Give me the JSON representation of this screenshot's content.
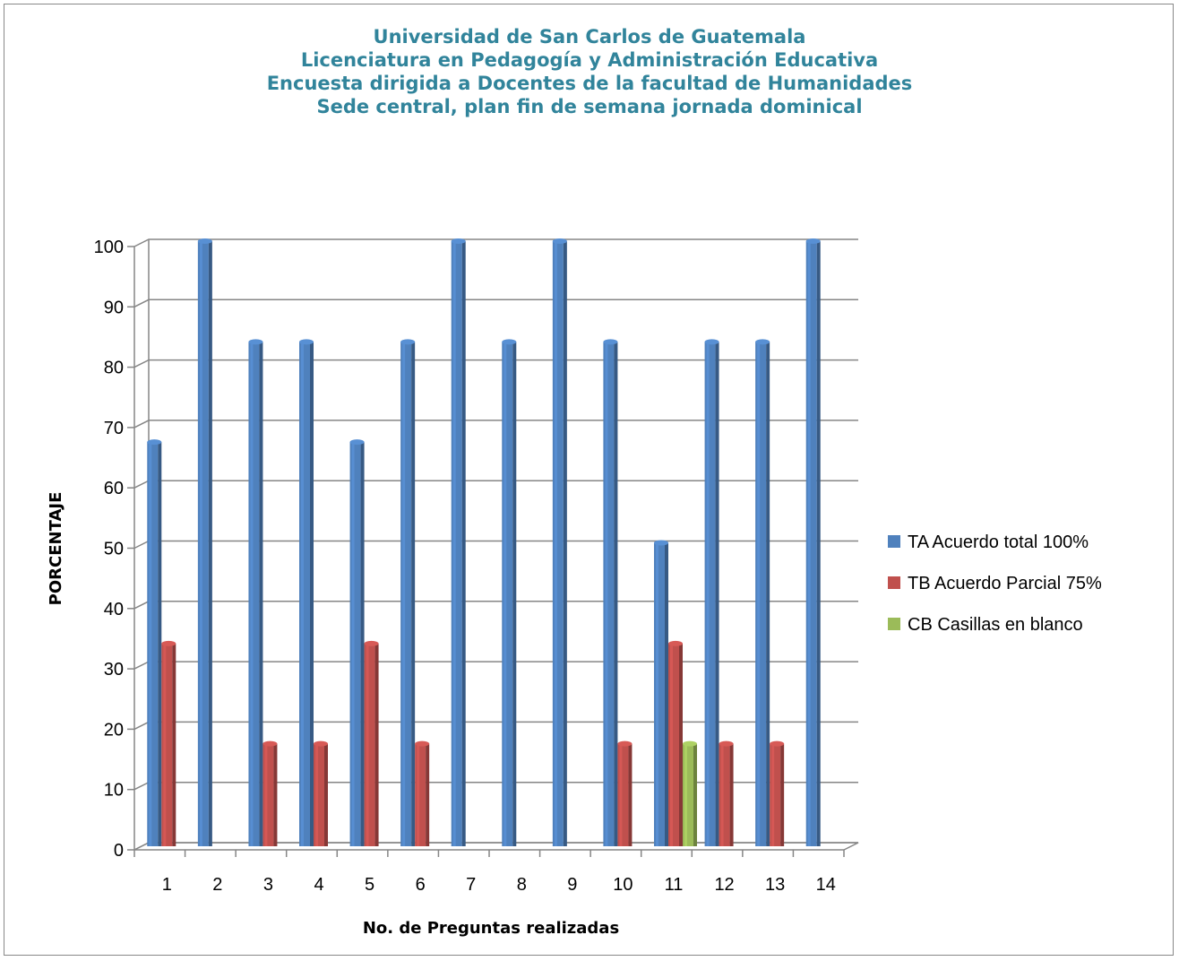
{
  "chart_data": {
    "type": "bar",
    "title": [
      "Universidad de San Carlos de Guatemala",
      "Licenciatura en Pedagogía y Administración Educativa",
      "Encuesta dirigida a Docentes de la facultad de Humanidades",
      "Sede central, plan fin de semana jornada dominical"
    ],
    "xlabel": "No. de Preguntas realizadas",
    "ylabel": "PORCENTAJE",
    "ylim": [
      0,
      100
    ],
    "yticks": [
      0,
      10,
      20,
      30,
      40,
      50,
      60,
      70,
      80,
      90,
      100
    ],
    "grid": true,
    "legend_position": "right",
    "categories": [
      "1",
      "2",
      "3",
      "4",
      "5",
      "6",
      "7",
      "8",
      "9",
      "10",
      "11",
      "12",
      "13",
      "14"
    ],
    "series": [
      {
        "name": "TA Acuerdo total 100%",
        "color": "#4f81bd",
        "values": [
          66.7,
          100,
          83.3,
          83.3,
          66.7,
          83.3,
          100,
          83.3,
          100,
          83.3,
          50,
          83.3,
          83.3,
          100
        ]
      },
      {
        "name": "TB Acuerdo Parcial 75%",
        "color": "#c0504d",
        "values": [
          33.3,
          0,
          16.7,
          16.7,
          33.3,
          16.7,
          0,
          0,
          0,
          16.7,
          33.3,
          16.7,
          16.7,
          0
        ]
      },
      {
        "name": "CB Casillas en blanco",
        "color": "#9bbb59",
        "values": [
          0,
          0,
          0,
          0,
          0,
          0,
          0,
          0,
          0,
          0,
          16.7,
          0,
          0,
          0
        ]
      }
    ]
  }
}
